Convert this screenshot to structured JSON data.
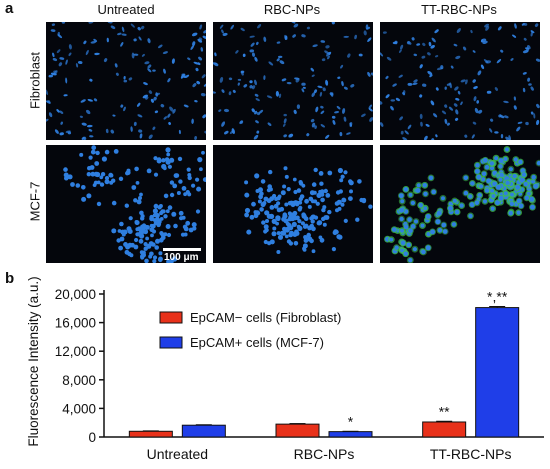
{
  "panel_a_label": "a",
  "panel_b_label": "b",
  "columns": [
    "Untreated",
    "RBC-NPs",
    "TT-RBC-NPs"
  ],
  "rows": [
    "Fibroblast",
    "MCF-7"
  ],
  "images": [
    {
      "row": "Fibroblast",
      "column": "Untreated",
      "cell_shape": "elongated",
      "green_signal": false
    },
    {
      "row": "Fibroblast",
      "column": "RBC-NPs",
      "cell_shape": "elongated",
      "green_signal": false
    },
    {
      "row": "Fibroblast",
      "column": "TT-RBC-NPs",
      "cell_shape": "elongated",
      "green_signal": false
    },
    {
      "row": "MCF-7",
      "column": "Untreated",
      "cell_shape": "round-clustered",
      "green_signal": false
    },
    {
      "row": "MCF-7",
      "column": "RBC-NPs",
      "cell_shape": "round-clustered",
      "green_signal": false
    },
    {
      "row": "MCF-7",
      "column": "TT-RBC-NPs",
      "cell_shape": "round-clustered",
      "green_signal": true
    }
  ],
  "scale_bar_label": "100 μm",
  "colors": {
    "nucleus_blue": "#2f7fe0",
    "background": "#04060c",
    "green_signal": "#3fbf4a",
    "fibroblast_bar": "#e8311a",
    "mcf7_bar": "#1f3ee8"
  },
  "chart_data": {
    "type": "bar",
    "categories": [
      "Untreated",
      "RBC-NPs",
      "TT-RBC-NPs"
    ],
    "series": [
      {
        "name": "EpCAM− cells (Fibroblast)",
        "values": [
          800,
          1800,
          2100
        ],
        "errors": [
          60,
          80,
          100
        ],
        "annotations": [
          "",
          "",
          "**"
        ]
      },
      {
        "name": "EpCAM+ cells (MCF-7)",
        "values": [
          1650,
          750,
          18100
        ],
        "errors": [
          70,
          50,
          150
        ],
        "annotations": [
          "",
          "*",
          "*,**"
        ]
      }
    ],
    "ylabel": "Fluorescence Intensity (a.u.)",
    "xlabel": "",
    "ylim": [
      0,
      20000
    ],
    "yticks": [
      0,
      4000,
      8000,
      12000,
      16000,
      20000
    ],
    "ytick_labels": [
      "0",
      "4,000",
      "8,000",
      "12,000",
      "16,000",
      "20,000"
    ],
    "grid": false,
    "legend_position": "upper-left inside"
  }
}
